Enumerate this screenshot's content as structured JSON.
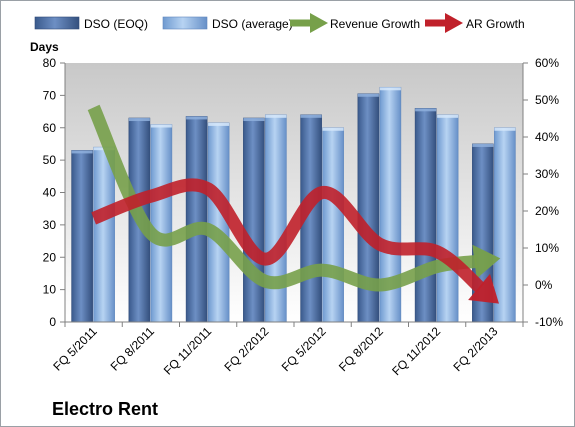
{
  "chart_data": {
    "type": "bar",
    "title": "Electro Rent",
    "ylabel": "Days",
    "y2label": "",
    "categories": [
      "FQ 5/2011",
      "FQ 8/2011",
      "FQ 11/2011",
      "FQ 2/2012",
      "FQ 5/2012",
      "FQ 8/2012",
      "FQ 11/2012",
      "FQ 2/2013"
    ],
    "ylim": [
      0,
      80
    ],
    "yticks": [
      0,
      10,
      20,
      30,
      40,
      50,
      60,
      70,
      80
    ],
    "y2lim": [
      -10,
      60
    ],
    "y2ticks": [
      "-10%",
      "0%",
      "10%",
      "20%",
      "30%",
      "40%",
      "50%",
      "60%"
    ],
    "y2tick_values": [
      -10,
      0,
      10,
      20,
      30,
      40,
      50,
      60
    ],
    "grid": false,
    "legend_position": "top",
    "series": [
      {
        "name": "DSO (EOQ)",
        "kind": "bar",
        "axis": "left",
        "color": "#4a6fa5",
        "values": [
          53,
          63,
          63.5,
          63,
          64,
          70.5,
          66,
          55
        ]
      },
      {
        "name": "DSO (average)",
        "kind": "bar",
        "axis": "left",
        "color": "#8db4e2",
        "values": [
          54,
          61,
          61.5,
          64,
          60,
          72.5,
          64,
          60
        ]
      },
      {
        "name": "Revenue Growth",
        "kind": "arrow-line",
        "axis": "right",
        "color": "#77a04a",
        "values": [
          48,
          14,
          15,
          1,
          4,
          0,
          5,
          7
        ]
      },
      {
        "name": "AR Growth",
        "kind": "arrow-line",
        "axis": "right",
        "color": "#c0202a",
        "values": [
          18,
          24,
          26,
          7,
          25,
          11,
          9,
          -4
        ]
      }
    ]
  }
}
